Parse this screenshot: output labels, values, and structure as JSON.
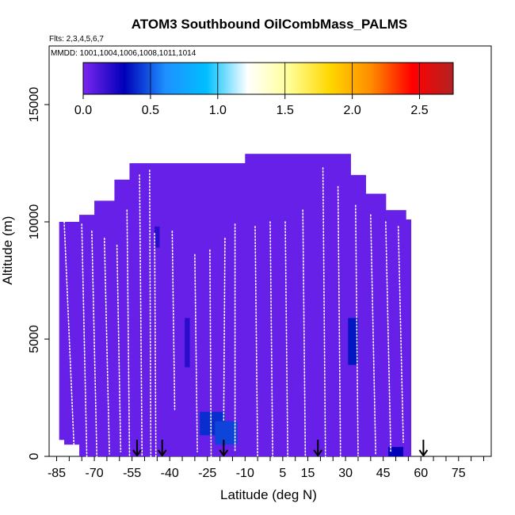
{
  "chart_data": {
    "type": "heatmap",
    "title": "ATOM3 Southbound OilCombMass_PALMS",
    "flights_label": "Flts: 2,3,4,5,6,7",
    "mmdd_label": "MMDD: 1001,1004,1006,1008,1011,1014",
    "xlabel": "Latitude (deg N)",
    "ylabel": "Altitude (m)",
    "xlim": [
      -88,
      88
    ],
    "ylim": [
      0,
      17500
    ],
    "xticks": [
      -85,
      -70,
      -55,
      -40,
      -25,
      -10,
      5,
      15,
      30,
      45,
      60,
      75
    ],
    "xtick_labels": [
      "-85",
      "-70",
      "-55",
      "-40",
      "-25",
      "-10",
      "5",
      "15",
      "30",
      "45",
      "60",
      "75"
    ],
    "yticks": [
      0,
      5000,
      10000,
      15000
    ],
    "ytick_labels": [
      "0",
      "5000",
      "10000",
      "15000"
    ],
    "colorbar": {
      "range": [
        0,
        2.75
      ],
      "ticks": [
        0.0,
        0.5,
        1.0,
        1.5,
        2.0,
        2.5
      ],
      "tick_labels": [
        "0.0",
        "0.5",
        "1.0",
        "1.5",
        "2.0",
        "2.5"
      ],
      "colors": [
        "#7b26f0",
        "#0000b8",
        "#1e90ff",
        "#00bfff",
        "#ffffff",
        "#ffff99",
        "#ffd700",
        "#ff8c00",
        "#ff0000",
        "#b22222"
      ]
    },
    "background_value": 0.05,
    "envelope": [
      {
        "lat": -84,
        "top": 10000,
        "bottom": 5000
      },
      {
        "lat": -82,
        "top": 10000,
        "bottom": 700
      },
      {
        "lat": -76,
        "top": 10000,
        "bottom": 500
      },
      {
        "lat": -70,
        "top": 10300,
        "bottom": 0
      },
      {
        "lat": -62,
        "top": 10900,
        "bottom": 0
      },
      {
        "lat": -56,
        "top": 11800,
        "bottom": 0
      },
      {
        "lat": -50,
        "top": 12500,
        "bottom": 0
      },
      {
        "lat": -30,
        "top": 12500,
        "bottom": 0
      },
      {
        "lat": -10,
        "top": 12500,
        "bottom": 0
      },
      {
        "lat": 10,
        "top": 12900,
        "bottom": 0
      },
      {
        "lat": 24,
        "top": 12900,
        "bottom": 0
      },
      {
        "lat": 32,
        "top": 12000,
        "bottom": 0
      },
      {
        "lat": 38,
        "top": 11200,
        "bottom": 0
      },
      {
        "lat": 46,
        "top": 10500,
        "bottom": 0
      },
      {
        "lat": 54,
        "top": 10100,
        "bottom": 0
      },
      {
        "lat": 56,
        "top": 10000,
        "bottom": 700
      }
    ],
    "high_cells": [
      {
        "lat0": -28,
        "lat1": -18,
        "alt0": 900,
        "alt1": 1900,
        "value": 0.4
      },
      {
        "lat0": -22,
        "lat1": -13,
        "alt0": 500,
        "alt1": 1500,
        "value": 0.45
      },
      {
        "lat0": 31,
        "lat1": 35,
        "alt0": 3900,
        "alt1": 5900,
        "value": 0.35
      },
      {
        "lat0": 47,
        "lat1": 53,
        "alt0": 0,
        "alt1": 400,
        "value": 0.3
      },
      {
        "lat0": -34,
        "lat1": -32,
        "alt0": 3800,
        "alt1": 5900,
        "value": 0.2
      },
      {
        "lat0": -46,
        "lat1": -44,
        "alt0": 8900,
        "alt1": 9800,
        "value": 0.2
      }
    ],
    "arrows_lat": [
      -53,
      -43,
      -18.5,
      19,
      61
    ],
    "flight_tracks": [
      {
        "lat0": -82,
        "lat1": -78,
        "alt0": 10000,
        "alt1": 200
      },
      {
        "lat0": -75,
        "lat1": -73,
        "alt0": 9900,
        "alt1": 0
      },
      {
        "lat0": -71,
        "lat1": -69,
        "alt0": 9600,
        "alt1": 0
      },
      {
        "lat0": -66,
        "lat1": -64,
        "alt0": 9300,
        "alt1": 100
      },
      {
        "lat0": -61,
        "lat1": -59.5,
        "alt0": 9000,
        "alt1": 200
      },
      {
        "lat0": -57,
        "lat1": -56,
        "alt0": 10500,
        "alt1": 0
      },
      {
        "lat0": -52,
        "lat1": -51,
        "alt0": 12000,
        "alt1": 0
      },
      {
        "lat0": -48,
        "lat1": -47.5,
        "alt0": 12200,
        "alt1": 0
      },
      {
        "lat0": -46,
        "lat1": -45.5,
        "alt0": 9500,
        "alt1": 0
      },
      {
        "lat0": -39,
        "lat1": -38,
        "alt0": 9600,
        "alt1": 2000
      },
      {
        "lat0": -30,
        "lat1": -29,
        "alt0": 8600,
        "alt1": 200
      },
      {
        "lat0": -24,
        "lat1": -23.5,
        "alt0": 8800,
        "alt1": 0
      },
      {
        "lat0": -18,
        "lat1": -18.5,
        "alt0": 9300,
        "alt1": 1500
      },
      {
        "lat0": -14,
        "lat1": -14,
        "alt0": 9900,
        "alt1": 200
      },
      {
        "lat0": -6,
        "lat1": -5,
        "alt0": 9800,
        "alt1": 0
      },
      {
        "lat0": 0,
        "lat1": 1,
        "alt0": 10000,
        "alt1": 0
      },
      {
        "lat0": 6,
        "lat1": 7,
        "alt0": 10000,
        "alt1": 0
      },
      {
        "lat0": 13,
        "lat1": 14,
        "alt0": 10500,
        "alt1": 0
      },
      {
        "lat0": 21,
        "lat1": 22,
        "alt0": 12300,
        "alt1": 0
      },
      {
        "lat0": 27,
        "lat1": 28,
        "alt0": 11500,
        "alt1": 0
      },
      {
        "lat0": 34,
        "lat1": 35,
        "alt0": 10700,
        "alt1": 0
      },
      {
        "lat0": 40,
        "lat1": 42,
        "alt0": 10300,
        "alt1": 100
      },
      {
        "lat0": 46,
        "lat1": 48,
        "alt0": 10000,
        "alt1": 200
      },
      {
        "lat0": 51,
        "lat1": 53,
        "alt0": 9800,
        "alt1": 600
      }
    ]
  }
}
